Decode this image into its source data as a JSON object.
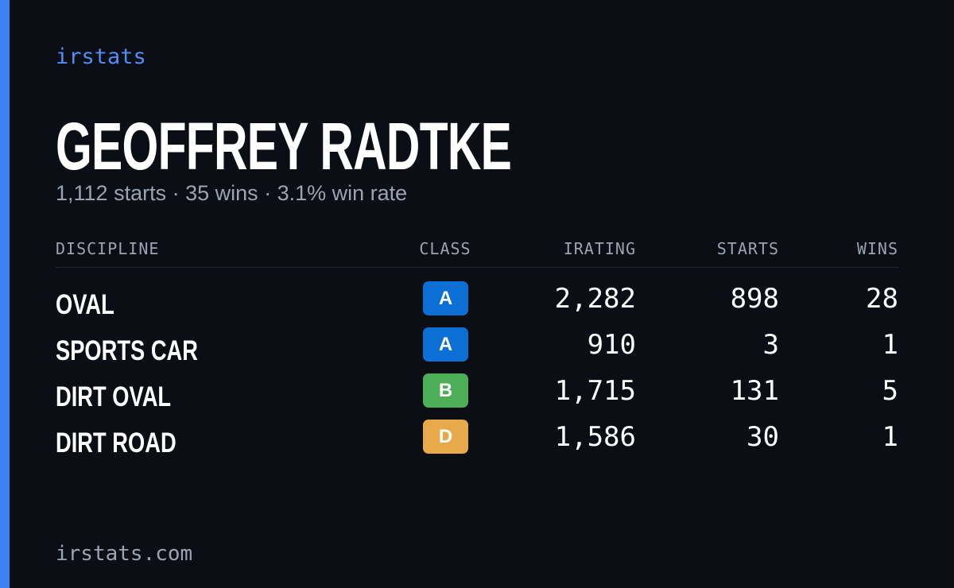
{
  "brand": "irstats",
  "driver": {
    "name": "GEOFFREY RADTKE",
    "summary": "1,112 starts · 35 wins · 3.1% win rate"
  },
  "table": {
    "headers": [
      "DISCIPLINE",
      "CLASS",
      "IRATING",
      "STARTS",
      "WINS"
    ],
    "rows": [
      [
        "OVAL",
        "A",
        "2,282",
        "898",
        "28"
      ],
      [
        "SPORTS CAR",
        "A",
        "910",
        "3",
        "1"
      ],
      [
        "DIRT OVAL",
        "B",
        "1,715",
        "131",
        "5"
      ],
      [
        "DIRT ROAD",
        "D",
        "1,586",
        "30",
        "1"
      ]
    ],
    "class_colors": [
      "#0b6fd6",
      "#0b6fd6",
      "#4cae57",
      "#e8a94b"
    ]
  },
  "footer": "irstats.com"
}
